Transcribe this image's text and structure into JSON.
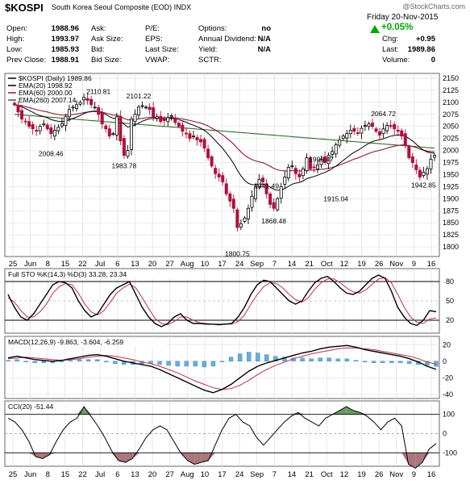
{
  "header": {
    "symbol": "$KOSPI",
    "description": "South Korea Seoul Composite (EOD)  INDX",
    "logo": "@StockCharts.com",
    "date": "Friday  20-Nov-2015",
    "change_pct": "+0.05%",
    "accent_up": "#00aa00",
    "col1": [
      {
        "label": "Open:",
        "value": "1988.96"
      },
      {
        "label": "High:",
        "value": "1993.97"
      },
      {
        "label": "Low:",
        "value": "1985.93"
      },
      {
        "label": "Prev Close:",
        "value": "1988.91"
      }
    ],
    "col2": [
      {
        "label": "Ask:",
        "value": ""
      },
      {
        "label": "Ask Size:",
        "value": ""
      },
      {
        "label": "Bid:",
        "value": ""
      },
      {
        "label": "Bid Size:",
        "value": ""
      }
    ],
    "col3": [
      {
        "label": "P/E:",
        "value": ""
      },
      {
        "label": "EPS:",
        "value": ""
      },
      {
        "label": "Last Size:",
        "value": ""
      },
      {
        "label": "VWAP:",
        "value": ""
      }
    ],
    "col4": [
      {
        "label": "Options:",
        "value": "no"
      },
      {
        "label": "Annual Dividend:",
        "value": "N/A"
      },
      {
        "label": "Yield:",
        "value": "N/A"
      },
      {
        "label": "SCTR:",
        "value": ""
      }
    ],
    "col5": [
      {
        "label": "Chg:",
        "value": "+0.95"
      },
      {
        "label": "Last:",
        "value": "1989.86"
      },
      {
        "label": "Volume:",
        "value": "0"
      }
    ]
  },
  "chart_data": [
    {
      "type": "candlestick",
      "legend": [
        {
          "text": "$KOSPI (Daily) 1989.86",
          "color": "#000000"
        },
        {
          "text": "EMA(20) 1998.92",
          "color": "#000000"
        },
        {
          "text": "EMA(60) 2000.00",
          "color": "#8b1a3a"
        },
        {
          "text": "EMA(260) 2007.14",
          "color": "#2e6b2e"
        }
      ],
      "ylim": [
        1780,
        2160
      ],
      "yticks": [
        1800,
        1825,
        1850,
        1875,
        1900,
        1925,
        1950,
        1975,
        2000,
        2025,
        2050,
        2075,
        2100,
        2125,
        2150
      ],
      "xticks": [
        "25",
        "Jun",
        "8",
        "15",
        "22",
        "Jul",
        "6",
        "13",
        "20",
        "27",
        "Aug",
        "10",
        "17",
        "24",
        "Sep",
        "7",
        "14",
        "21",
        "Oct",
        "12",
        "19",
        "26",
        "Nov",
        "9",
        "16"
      ],
      "close": [
        2095,
        2080,
        2065,
        2060,
        2050,
        2045,
        2040,
        2050,
        2055,
        2045,
        2035,
        2042,
        2048,
        2056,
        2070,
        2085,
        2090,
        2095,
        2100,
        2110,
        2104,
        2095,
        2090,
        2075,
        2055,
        2045,
        2030,
        2035,
        2070,
        2020,
        1990,
        2000,
        2065,
        2075,
        2090,
        2093,
        2090,
        2085,
        2070,
        2070,
        2060,
        2062,
        2068,
        2072,
        2058,
        2050,
        2040,
        2035,
        2025,
        2030,
        2022,
        2018,
        2005,
        1985,
        1968,
        1952,
        1945,
        1935,
        1910,
        1895,
        1880,
        1840,
        1848,
        1860,
        1880,
        1905,
        1925,
        1940,
        1935,
        1910,
        1888,
        1880,
        1900,
        1925,
        1945,
        1965,
        1968,
        1952,
        1945,
        1962,
        1985,
        1962,
        1965,
        1970,
        1982,
        1975,
        1990,
        1998,
        2012,
        2022,
        2030,
        2035,
        2042,
        2040,
        2035,
        2046,
        2052,
        2055,
        2050,
        2040,
        2032,
        2045,
        2052,
        2050,
        2045,
        2040,
        2030,
        2010,
        1985,
        1975,
        1960,
        1945,
        1955,
        1962,
        1982,
        1989.86
      ],
      "annotations": [
        {
          "text": "2110.81",
          "x": 23,
          "y": 2110.81
        },
        {
          "text": "2008.46",
          "x": 10,
          "y": 2008.46
        },
        {
          "text": "2101.22",
          "x": 34,
          "y": 2101.22
        },
        {
          "text": "1983.78",
          "x": 30,
          "y": 1983.78
        },
        {
          "text": "1800.75",
          "x": 61,
          "y": 1800.75
        },
        {
          "text": "1941.49",
          "x": 69,
          "y": 1941.49
        },
        {
          "text": "1868.48",
          "x": 71,
          "y": 1868.48
        },
        {
          "text": "1996.47",
          "x": 84,
          "y": 1996.47
        },
        {
          "text": "1915.04",
          "x": 88,
          "y": 1915.04
        },
        {
          "text": "2064.72",
          "x": 101,
          "y": 2064.72
        },
        {
          "text": "1942.85",
          "x": 112,
          "y": 1942.85
        }
      ]
    },
    {
      "type": "line",
      "legend": "Full STO %K(14,3) %D(3) 33.28, 23.34",
      "ylim": [
        0,
        100
      ],
      "yticks": [
        20,
        50,
        80
      ],
      "k": [
        60,
        40,
        25,
        20,
        30,
        45,
        60,
        75,
        80,
        78,
        70,
        50,
        35,
        25,
        30,
        45,
        60,
        70,
        75,
        80,
        60,
        40,
        25,
        15,
        10,
        15,
        25,
        30,
        20,
        15,
        15,
        14,
        14,
        13,
        14,
        15,
        25,
        40,
        60,
        75,
        82,
        80,
        70,
        60,
        50,
        45,
        50,
        65,
        78,
        85,
        88,
        80,
        70,
        62,
        60,
        65,
        75,
        85,
        90,
        85,
        65,
        40,
        25,
        15,
        12,
        20,
        35,
        33.28
      ],
      "d": [
        55,
        48,
        35,
        25,
        25,
        33,
        45,
        62,
        72,
        77,
        75,
        62,
        45,
        33,
        28,
        35,
        48,
        62,
        70,
        76,
        70,
        55,
        38,
        23,
        15,
        13,
        18,
        25,
        25,
        20,
        16,
        15,
        14,
        14,
        14,
        14,
        18,
        28,
        45,
        60,
        72,
        78,
        77,
        70,
        60,
        52,
        48,
        55,
        68,
        78,
        84,
        84,
        78,
        70,
        64,
        62,
        67,
        76,
        84,
        86,
        78,
        60,
        40,
        25,
        17,
        15,
        22,
        23.34
      ]
    },
    {
      "type": "line",
      "legend": "MACD(12,26,9) -9.863, -3.604, -6.259",
      "ylim": [
        -45,
        30
      ],
      "yticks": [
        -40,
        -20,
        0,
        20
      ],
      "macd": [
        4,
        6,
        4,
        2,
        1,
        0,
        1,
        3,
        5,
        7,
        8,
        6,
        3,
        0,
        -2,
        -4,
        -6,
        -10,
        -15,
        -20,
        -25,
        -30,
        -35,
        -38,
        -34,
        -28,
        -20,
        -12,
        -6,
        -2,
        1,
        4,
        7,
        10,
        12,
        15,
        17,
        18,
        19,
        17,
        14,
        12,
        10,
        8,
        6,
        3,
        -1,
        -6,
        -9.863
      ],
      "signal": [
        3,
        4,
        5,
        4,
        3,
        2,
        1,
        2,
        3,
        5,
        6,
        7,
        6,
        4,
        2,
        -1,
        -3,
        -6,
        -10,
        -14,
        -19,
        -24,
        -28,
        -32,
        -34,
        -33,
        -29,
        -23,
        -16,
        -10,
        -5,
        -1,
        3,
        6,
        9,
        11,
        13,
        15,
        16,
        16,
        15,
        14,
        12,
        10,
        8,
        6,
        3,
        -1,
        -3.604
      ],
      "histogram": [
        1,
        2,
        -1,
        -2,
        -2,
        -2,
        0,
        1,
        2,
        2,
        2,
        -1,
        -3,
        -4,
        -4,
        -3,
        -3,
        -4,
        -5,
        -6,
        -6,
        -6,
        -7,
        -6,
        0,
        5,
        9,
        11,
        10,
        8,
        6,
        5,
        4,
        4,
        3,
        4,
        4,
        3,
        3,
        1,
        -1,
        -2,
        -2,
        -2,
        -2,
        -3,
        -4,
        -5,
        -6.259
      ]
    },
    {
      "type": "area",
      "legend": "CCI(20) -51.44",
      "ylim": [
        -170,
        170
      ],
      "yticks": [
        -100,
        0,
        100
      ],
      "values": [
        80,
        60,
        20,
        -40,
        -120,
        -130,
        -110,
        -40,
        20,
        60,
        80,
        140,
        90,
        40,
        -20,
        -90,
        -140,
        -150,
        -130,
        -80,
        -20,
        20,
        40,
        20,
        -40,
        -100,
        -140,
        -160,
        -150,
        -140,
        -60,
        20,
        80,
        100,
        60,
        40,
        -20,
        -60,
        -20,
        20,
        60,
        90,
        110,
        80,
        60,
        40,
        80,
        100,
        120,
        140,
        120,
        110,
        90,
        60,
        20,
        60,
        80,
        40,
        -160,
        -180,
        -150,
        -80,
        -51.44
      ]
    }
  ]
}
